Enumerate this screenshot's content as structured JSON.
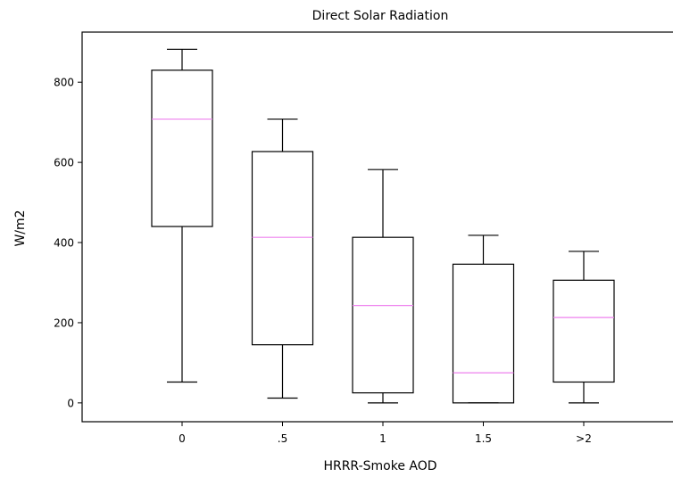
{
  "chart_data": {
    "type": "box",
    "title": "Direct Solar Radiation",
    "xlabel": "HRRR-Smoke AOD",
    "ylabel": "W/m2",
    "categories": [
      "0",
      ".5",
      "1",
      "1.5",
      ">2"
    ],
    "boxes": [
      {
        "category": "0",
        "whisker_low": 52,
        "q1": 440,
        "median": 708,
        "q3": 830,
        "whisker_high": 882
      },
      {
        "category": ".5",
        "whisker_low": 12,
        "q1": 145,
        "median": 413,
        "q3": 627,
        "whisker_high": 708
      },
      {
        "category": "1",
        "whisker_low": 0,
        "q1": 25,
        "median": 243,
        "q3": 413,
        "whisker_high": 582
      },
      {
        "category": "1.5",
        "whisker_low": 0,
        "q1": 0,
        "median": 75,
        "q3": 346,
        "whisker_high": 418
      },
      {
        "category": ">2",
        "whisker_low": 0,
        "q1": 52,
        "median": 213,
        "q3": 306,
        "whisker_high": 378
      }
    ],
    "yticks": [
      0,
      200,
      400,
      600,
      800
    ],
    "ylim": [
      -47,
      925
    ],
    "median_color": "#ee82ee",
    "box_color": "#000000",
    "grid": false,
    "legend": "none"
  }
}
